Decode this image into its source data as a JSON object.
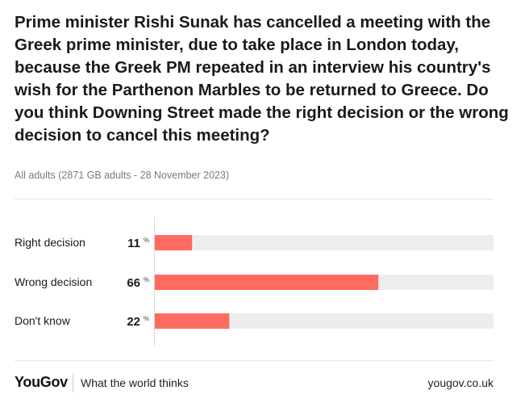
{
  "header": {
    "question": "Prime minister Rishi Sunak has cancelled a meeting with the Greek prime minister, due to take place in London today, because the Greek PM repeated in an interview his country's wish for the Parthenon Marbles to be returned to Greece. Do you think Downing Street made the right decision or the wrong decision to cancel this meeting?",
    "sample": "All adults (2871 GB adults - 28 November 2023)"
  },
  "chart_data": {
    "type": "bar",
    "orientation": "horizontal",
    "categories": [
      "Right decision",
      "Wrong decision",
      "Don't know"
    ],
    "values": [
      11,
      66,
      22
    ],
    "value_suffix": "%",
    "xlim": [
      0,
      100
    ],
    "bar_color": "#ff6b61",
    "track_color": "#ededed"
  },
  "footer": {
    "brand": "YouGov",
    "tagline": "What the world thinks",
    "url": "yougov.co.uk"
  }
}
